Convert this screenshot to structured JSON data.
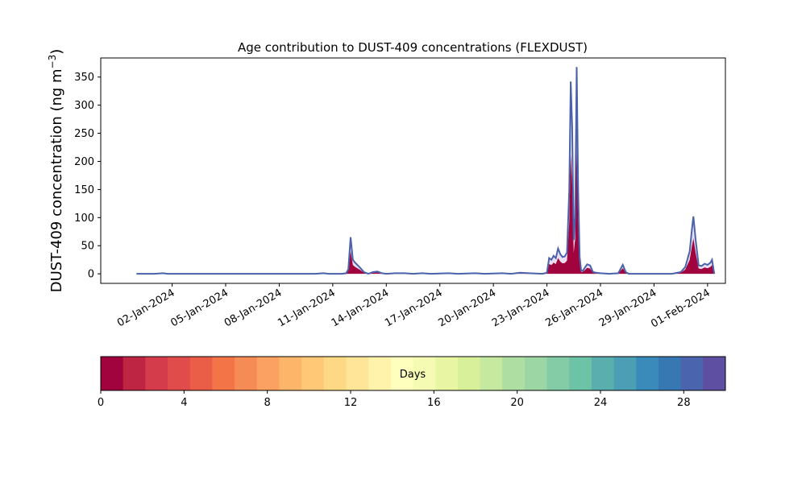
{
  "chart_data": {
    "type": "area",
    "title": "Age contribution to DUST-409 concentrations (FLEXDUST)",
    "ylabel_main": "DUST-409 concentration (ng m",
    "ylabel_sup": "−3",
    "ylabel_close": ")",
    "ylim": [
      -17,
      384
    ],
    "yticks": [
      0,
      50,
      100,
      150,
      200,
      250,
      300,
      350
    ],
    "xlim": [
      "2023-12-29T00:00",
      "2024-02-02T00:00"
    ],
    "xticks": [
      {
        "date": "2024-01-02",
        "label": "02-Jan-2024"
      },
      {
        "date": "2024-01-05",
        "label": "05-Jan-2024"
      },
      {
        "date": "2024-01-08",
        "label": "08-Jan-2024"
      },
      {
        "date": "2024-01-11",
        "label": "11-Jan-2024"
      },
      {
        "date": "2024-01-14",
        "label": "14-Jan-2024"
      },
      {
        "date": "2024-01-17",
        "label": "17-Jan-2024"
      },
      {
        "date": "2024-01-20",
        "label": "20-Jan-2024"
      },
      {
        "date": "2024-01-23",
        "label": "23-Jan-2024"
      },
      {
        "date": "2024-01-26",
        "label": "26-Jan-2024"
      },
      {
        "date": "2024-01-29",
        "label": "29-Jan-2024"
      },
      {
        "date": "2024-02-01",
        "label": "01-Feb-2024"
      }
    ],
    "total": [
      [
        "2023-12-31T00:00",
        0
      ],
      [
        "2024-01-01T00:00",
        0
      ],
      [
        "2024-01-01T12:00",
        1
      ],
      [
        "2024-01-01T18:00",
        0
      ],
      [
        "2024-01-02T00:00",
        0
      ],
      [
        "2024-01-07T00:00",
        0
      ],
      [
        "2024-01-10T00:00",
        0
      ],
      [
        "2024-01-10T12:00",
        1
      ],
      [
        "2024-01-10T18:00",
        0
      ],
      [
        "2024-01-11T00:00",
        0
      ],
      [
        "2024-01-11T12:00",
        0
      ],
      [
        "2024-01-11T18:00",
        1
      ],
      [
        "2024-01-11T21:00",
        8
      ],
      [
        "2024-01-12T00:00",
        65
      ],
      [
        "2024-01-12T03:00",
        25
      ],
      [
        "2024-01-12T06:00",
        20
      ],
      [
        "2024-01-12T12:00",
        12
      ],
      [
        "2024-01-12T18:00",
        3
      ],
      [
        "2024-01-13T00:00",
        0
      ],
      [
        "2024-01-13T06:00",
        3
      ],
      [
        "2024-01-13T12:00",
        4
      ],
      [
        "2024-01-13T18:00",
        1
      ],
      [
        "2024-01-14T00:00",
        0
      ],
      [
        "2024-01-14T12:00",
        1
      ],
      [
        "2024-01-15T00:00",
        1
      ],
      [
        "2024-01-15T12:00",
        0
      ],
      [
        "2024-01-16T00:00",
        1
      ],
      [
        "2024-01-16T12:00",
        0
      ],
      [
        "2024-01-17T12:00",
        1
      ],
      [
        "2024-01-18T00:00",
        0
      ],
      [
        "2024-01-19T00:00",
        1
      ],
      [
        "2024-01-19T12:00",
        0
      ],
      [
        "2024-01-20T12:00",
        1
      ],
      [
        "2024-01-21T00:00",
        0
      ],
      [
        "2024-01-21T12:00",
        2
      ],
      [
        "2024-01-22T00:00",
        1
      ],
      [
        "2024-01-22T18:00",
        0
      ],
      [
        "2024-01-23T00:00",
        2
      ],
      [
        "2024-01-23T03:00",
        28
      ],
      [
        "2024-01-23T06:00",
        25
      ],
      [
        "2024-01-23T09:00",
        32
      ],
      [
        "2024-01-23T12:00",
        28
      ],
      [
        "2024-01-23T15:00",
        45
      ],
      [
        "2024-01-23T18:00",
        35
      ],
      [
        "2024-01-23T21:00",
        30
      ],
      [
        "2024-01-24T00:00",
        31
      ],
      [
        "2024-01-24T03:00",
        38
      ],
      [
        "2024-01-24T06:00",
        150
      ],
      [
        "2024-01-24T08:00",
        342
      ],
      [
        "2024-01-24T10:00",
        260
      ],
      [
        "2024-01-24T12:00",
        60
      ],
      [
        "2024-01-24T14:00",
        100
      ],
      [
        "2024-01-24T16:00",
        368
      ],
      [
        "2024-01-24T18:00",
        150
      ],
      [
        "2024-01-24T20:00",
        30
      ],
      [
        "2024-01-24T22:00",
        6
      ],
      [
        "2024-01-25T00:00",
        5
      ],
      [
        "2024-01-25T06:00",
        17
      ],
      [
        "2024-01-25T10:00",
        15
      ],
      [
        "2024-01-25T14:00",
        3
      ],
      [
        "2024-01-25T18:00",
        2
      ],
      [
        "2024-01-26T00:00",
        1
      ],
      [
        "2024-01-26T12:00",
        0
      ],
      [
        "2024-01-27T00:00",
        1
      ],
      [
        "2024-01-27T06:00",
        16
      ],
      [
        "2024-01-27T10:00",
        3
      ],
      [
        "2024-01-27T14:00",
        0
      ],
      [
        "2024-01-30T00:00",
        0
      ],
      [
        "2024-01-30T12:00",
        3
      ],
      [
        "2024-01-30T18:00",
        12
      ],
      [
        "2024-01-31T00:00",
        40
      ],
      [
        "2024-01-31T03:00",
        80
      ],
      [
        "2024-01-31T05:00",
        102
      ],
      [
        "2024-01-31T08:00",
        60
      ],
      [
        "2024-01-31T12:00",
        15
      ],
      [
        "2024-01-31T16:00",
        14
      ],
      [
        "2024-01-31T20:00",
        18
      ],
      [
        "2024-02-01T00:00",
        16
      ],
      [
        "2024-02-01T04:00",
        20
      ],
      [
        "2024-02-01T06:00",
        25
      ],
      [
        "2024-02-01T09:00",
        0
      ]
    ],
    "age_0_1_fraction": 0.62,
    "series_colors": {
      "age_0_1": "#a0033d",
      "outline": "#4a62ab"
    },
    "colorbar": {
      "label": "Days",
      "min": 0,
      "max": 30,
      "ticks": [
        0,
        4,
        8,
        12,
        16,
        20,
        24,
        28
      ],
      "colors": [
        "#a0033d",
        "#be2542",
        "#d43c4c",
        "#e04c4a",
        "#ea5e48",
        "#f37446",
        "#f68c55",
        "#fba262",
        "#fdb56a",
        "#fec876",
        "#fdd885",
        "#fee598",
        "#fff2aa",
        "#fefebd",
        "#f5fbb2",
        "#e8f6a3",
        "#d9f09b",
        "#c5e99e",
        "#aedea2",
        "#9bd6a4",
        "#83cca5",
        "#6cc3a5",
        "#5aaead",
        "#4c9eb4",
        "#3a8bba",
        "#3778b3",
        "#4a64ad",
        "#5e4fa2"
      ]
    }
  }
}
